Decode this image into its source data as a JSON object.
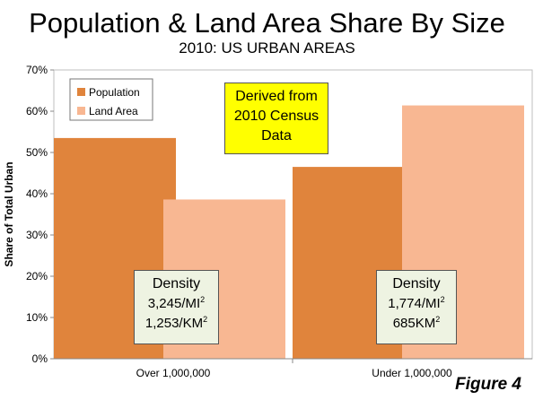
{
  "chart_data": {
    "type": "bar",
    "title": "Population & Land Area Share By Size",
    "subtitle": "2010: US URBAN AREAS",
    "ylabel": "Share of Total Urban",
    "xlabel": "",
    "categories": [
      "Over 1,000,000",
      "Under 1,000,000"
    ],
    "series": [
      {
        "name": "Population",
        "values": [
          53.5,
          46.5
        ],
        "color": "#e0843c"
      },
      {
        "name": "Land Area",
        "values": [
          38.6,
          61.4
        ],
        "color": "#f8b792"
      }
    ],
    "ylim": [
      0,
      70
    ],
    "yticks": [
      0,
      10,
      20,
      30,
      40,
      50,
      60,
      70
    ],
    "ytick_labels": [
      "0%",
      "10%",
      "20%",
      "30%",
      "40%",
      "50%",
      "60%",
      "70%"
    ],
    "grid": false,
    "legend": "top-left",
    "annotations": {
      "derived": [
        "Derived from",
        "2010 Census",
        "Data"
      ],
      "density": [
        {
          "title": "Density",
          "line1": "3,245/MI",
          "line2": "1,253/KM",
          "sup": "2"
        },
        {
          "title": "Density",
          "line1": "1,774/MI",
          "line2": "685KM",
          "sup": "2"
        }
      ]
    },
    "figure_label": "Figure 4"
  }
}
